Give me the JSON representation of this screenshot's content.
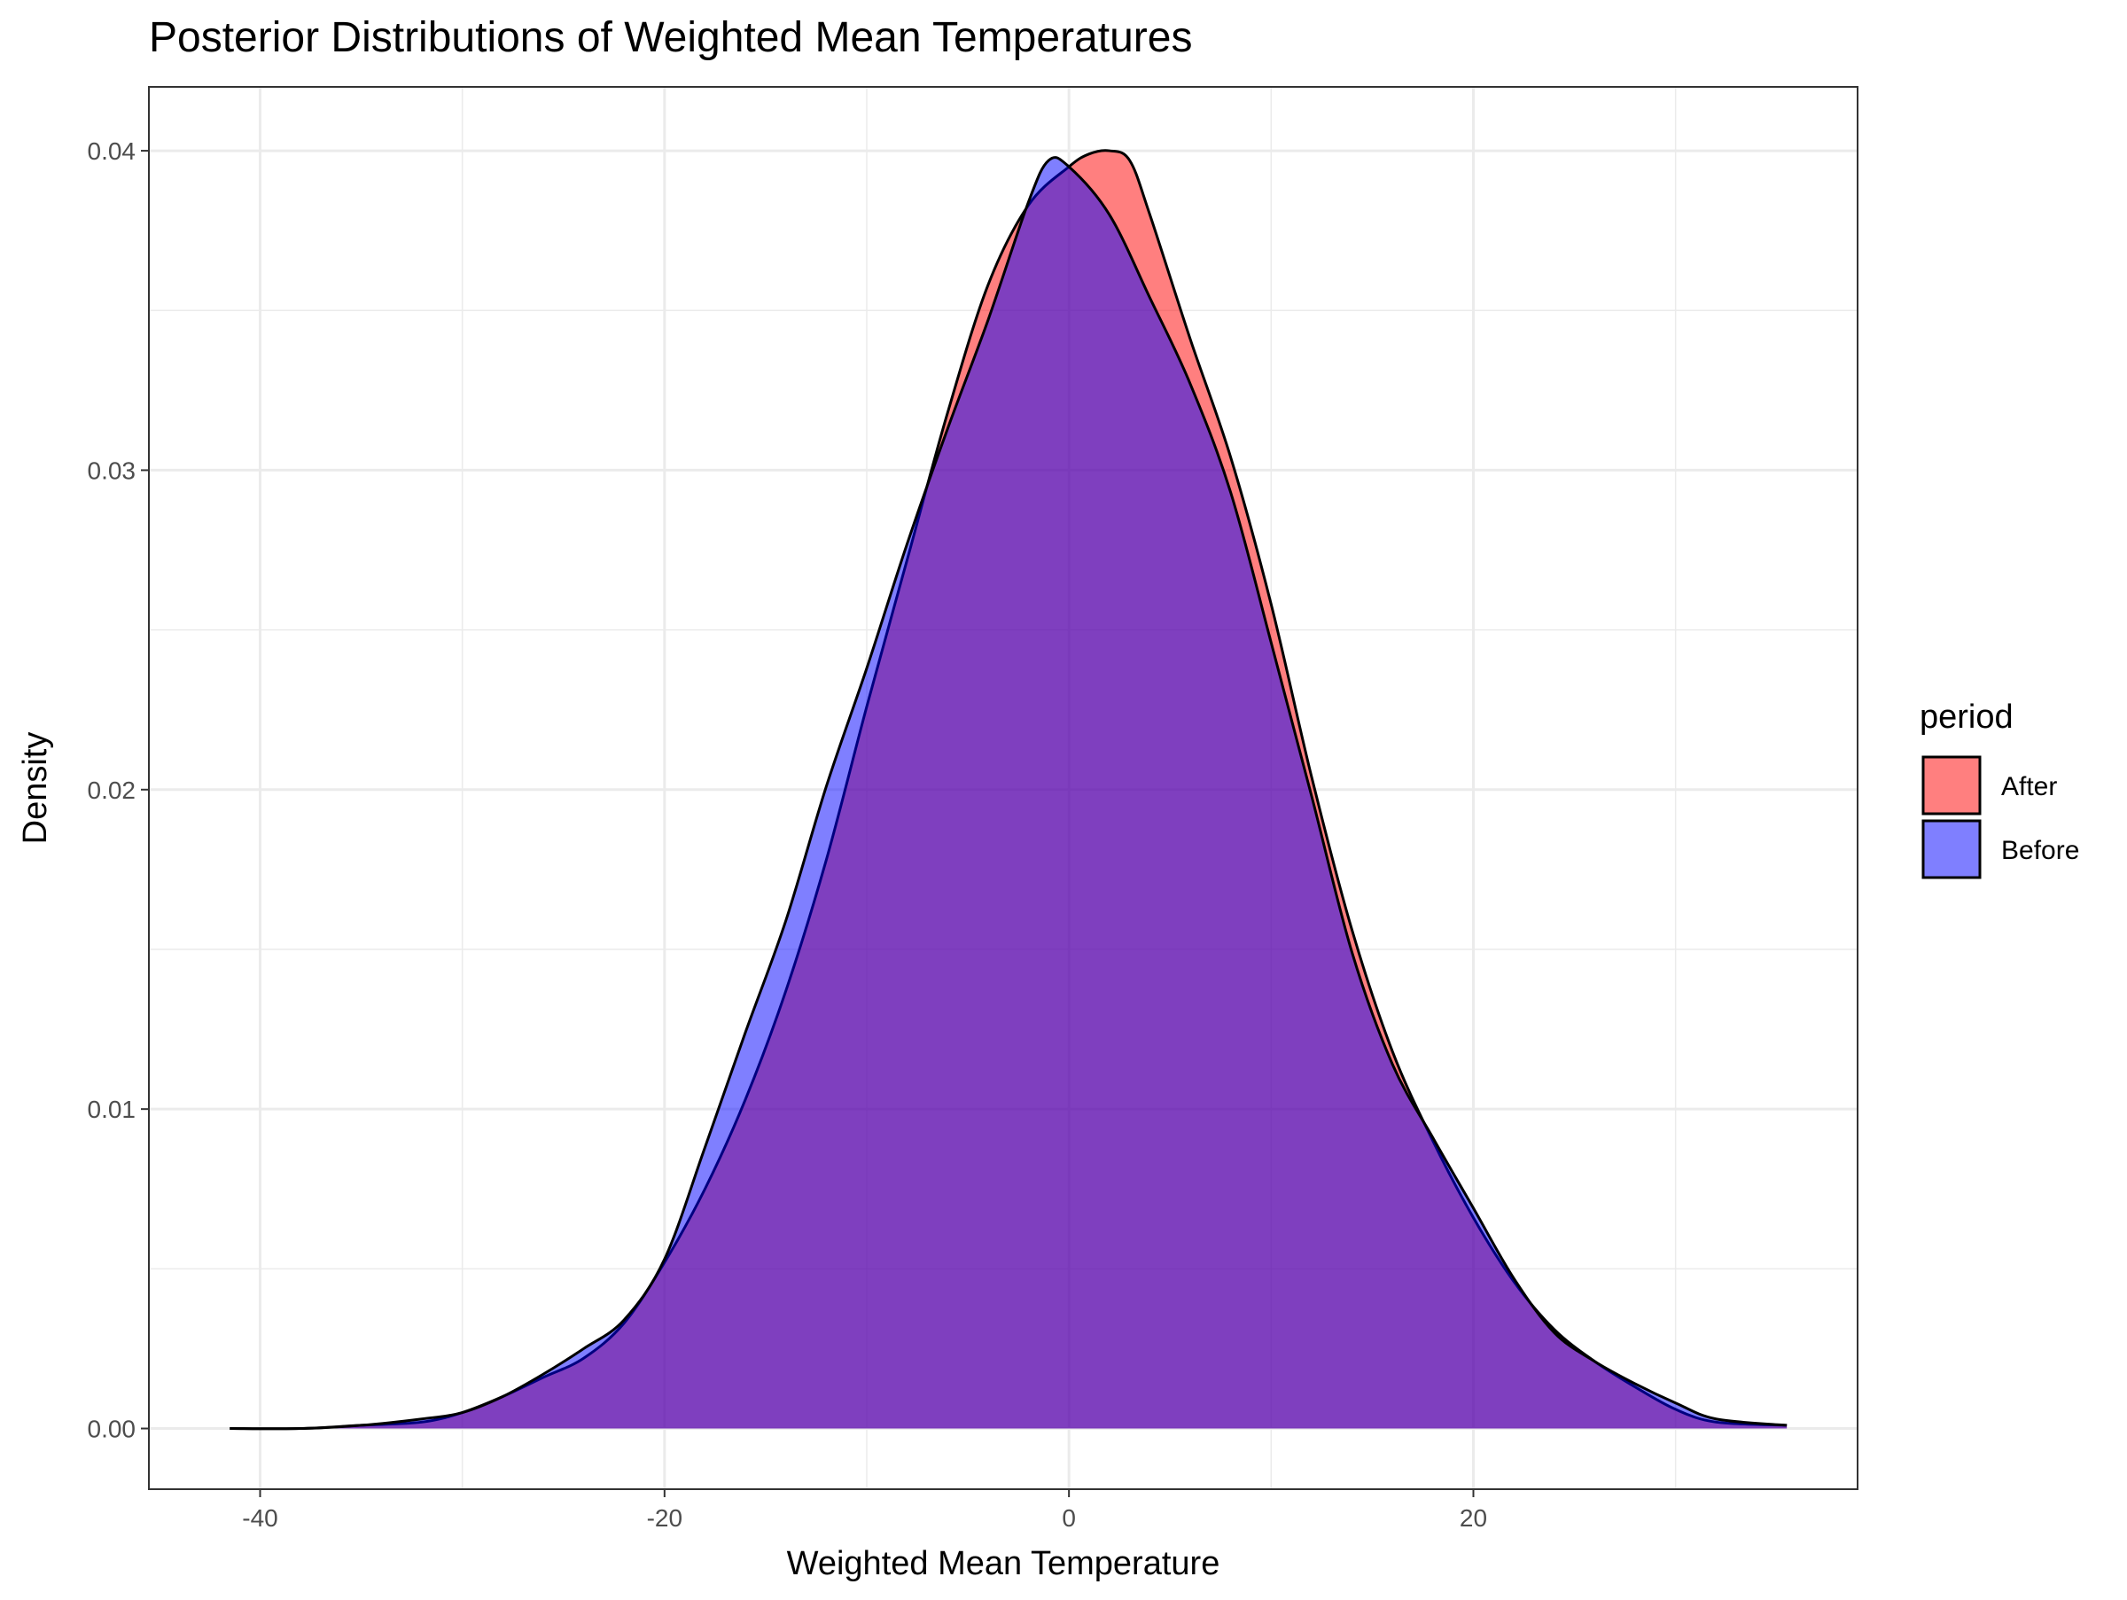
{
  "chart_data": {
    "type": "area",
    "title": "Posterior Distributions of Weighted Mean Temperatures",
    "xlabel": "Weighted Mean Temperature",
    "ylabel": "Density",
    "xlim": [
      -45.5,
      39
    ],
    "ylim": [
      -0.0019,
      0.042
    ],
    "x_ticks": [
      -40,
      -20,
      0,
      20
    ],
    "x_tick_labels": [
      "-40",
      "-20",
      "0",
      "20"
    ],
    "x_minor_ticks": [
      -30,
      -10,
      10,
      30
    ],
    "y_ticks": [
      0,
      0.01,
      0.02,
      0.03,
      0.04
    ],
    "y_tick_labels": [
      "0.00",
      "0.01",
      "0.02",
      "0.03",
      "0.04"
    ],
    "y_minor_ticks": [
      0.005,
      0.015,
      0.025,
      0.035
    ],
    "grid": true,
    "legend": {
      "title": "period",
      "position": "right"
    },
    "series": [
      {
        "name": "After",
        "color": "#FF0000",
        "x": [
          -41.5,
          -38,
          -35,
          -32,
          -30,
          -28,
          -26,
          -24,
          -22,
          -20,
          -18,
          -16,
          -14,
          -12,
          -10,
          -8,
          -6,
          -4,
          -2,
          0,
          1,
          2,
          3,
          4,
          6,
          8,
          10,
          12,
          14,
          16,
          18,
          20,
          22,
          24,
          26,
          28,
          30,
          32,
          35.5
        ],
        "values": [
          0.0,
          0.0,
          0.0001,
          0.0002,
          0.0005,
          0.001,
          0.0016,
          0.0022,
          0.0033,
          0.0052,
          0.0075,
          0.0103,
          0.0137,
          0.0178,
          0.0226,
          0.0272,
          0.0318,
          0.0358,
          0.0383,
          0.0395,
          0.0399,
          0.04,
          0.0397,
          0.038,
          0.0341,
          0.0304,
          0.0258,
          0.0204,
          0.0156,
          0.0118,
          0.009,
          0.0066,
          0.0046,
          0.0031,
          0.0021,
          0.0013,
          0.0006,
          0.0002,
          0.0001
        ]
      },
      {
        "name": "Before",
        "color": "#0000FF",
        "x": [
          -41.5,
          -38,
          -35,
          -32,
          -30,
          -28,
          -26,
          -24,
          -22,
          -20,
          -18,
          -16,
          -14,
          -12,
          -10,
          -8,
          -6,
          -4,
          -2,
          -1,
          0,
          2,
          4,
          6,
          8,
          10,
          12,
          14,
          16,
          18,
          20,
          22,
          24,
          26,
          28,
          30,
          32,
          35.5
        ],
        "values": [
          0.0,
          0.0,
          0.0001,
          0.0003,
          0.0005,
          0.001,
          0.0017,
          0.0025,
          0.0034,
          0.0053,
          0.0088,
          0.0124,
          0.0159,
          0.0201,
          0.0238,
          0.0277,
          0.0313,
          0.0347,
          0.0384,
          0.0397,
          0.0395,
          0.038,
          0.0354,
          0.0327,
          0.0293,
          0.0246,
          0.0198,
          0.0149,
          0.0114,
          0.0091,
          0.0069,
          0.0047,
          0.003,
          0.0021,
          0.0014,
          0.0008,
          0.0003,
          0.0001
        ]
      }
    ]
  }
}
